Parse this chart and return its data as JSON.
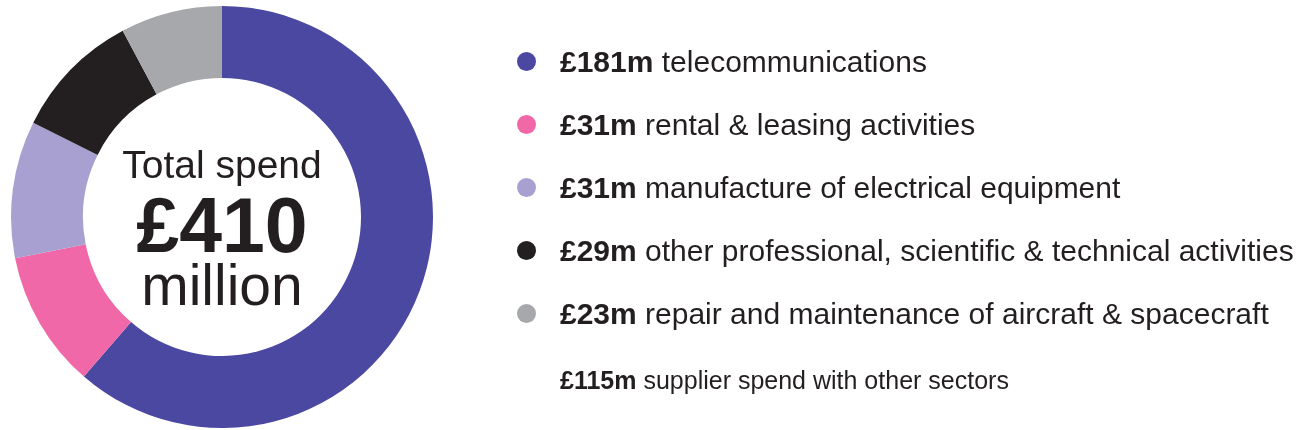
{
  "chart_data": {
    "type": "donut",
    "categories": [
      "£181m telecommunications",
      "£31m rental & leasing activities",
      "£31m manufacture of electrical equipment",
      "£29m other professional, scientific & technical activities",
      "£23m repair and maintenance of aircraft & spacecraft"
    ],
    "values": [
      181,
      31,
      31,
      29,
      23
    ],
    "colors": [
      "#4a48a0",
      "#f068a8",
      "#a7a0d0",
      "#231f20",
      "#a7a8ab"
    ],
    "legend": "right",
    "annotations": [
      "Total spend",
      "£410",
      "million",
      "£115m supplier spend with other sectors"
    ]
  }
}
